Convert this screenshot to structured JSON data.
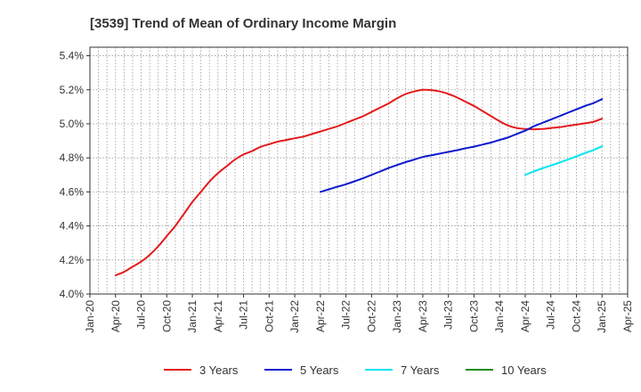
{
  "chart_data": {
    "type": "line",
    "title": "[3539]  Trend of Mean of Ordinary Income Margin",
    "xlabel": "",
    "ylabel": "",
    "x_tick_labels": [
      "Jan-20",
      "Apr-20",
      "Jul-20",
      "Oct-20",
      "Jan-21",
      "Apr-21",
      "Jul-21",
      "Oct-21",
      "Jan-22",
      "Apr-22",
      "Jul-22",
      "Oct-22",
      "Jan-23",
      "Apr-23",
      "Jul-23",
      "Oct-23",
      "Jan-24",
      "Apr-24",
      "Jul-24",
      "Oct-24",
      "Jan-25",
      "Apr-25"
    ],
    "y_tick_labels": [
      "4.0%",
      "4.2%",
      "4.4%",
      "4.6%",
      "4.8%",
      "5.0%",
      "5.2%",
      "5.4%"
    ],
    "ylim": [
      4.0,
      5.45
    ],
    "grid": true,
    "legend_position": "bottom",
    "series": [
      {
        "name": "3 Years",
        "color": "#e31a1c",
        "x": [
          "Apr-20",
          "May-20",
          "Jun-20",
          "Jul-20",
          "Aug-20",
          "Sep-20",
          "Oct-20",
          "Nov-20",
          "Dec-20",
          "Jan-21",
          "Feb-21",
          "Mar-21",
          "Apr-21",
          "May-21",
          "Jun-21",
          "Jul-21",
          "Aug-21",
          "Sep-21",
          "Oct-21",
          "Nov-21",
          "Dec-21",
          "Jan-22",
          "Feb-22",
          "Mar-22",
          "Apr-22",
          "May-22",
          "Jun-22",
          "Jul-22",
          "Aug-22",
          "Sep-22",
          "Oct-22",
          "Nov-22",
          "Dec-22",
          "Jan-23",
          "Feb-23",
          "Mar-23",
          "Apr-23",
          "May-23",
          "Jun-23",
          "Jul-23",
          "Aug-23",
          "Sep-23",
          "Oct-23",
          "Nov-23",
          "Dec-23",
          "Jan-24",
          "Feb-24",
          "Mar-24",
          "Apr-24",
          "May-24",
          "Jun-24",
          "Jul-24",
          "Aug-24",
          "Sep-24",
          "Oct-24",
          "Nov-24",
          "Dec-24",
          "Jan-25"
        ],
        "values": [
          4.11,
          4.13,
          4.16,
          4.19,
          4.23,
          4.28,
          4.34,
          4.4,
          4.47,
          4.54,
          4.6,
          4.66,
          4.71,
          4.75,
          4.79,
          4.82,
          4.84,
          4.865,
          4.88,
          4.895,
          4.905,
          4.915,
          4.925,
          4.94,
          4.955,
          4.97,
          4.985,
          5.005,
          5.025,
          5.045,
          5.07,
          5.095,
          5.12,
          5.15,
          5.175,
          5.19,
          5.2,
          5.198,
          5.19,
          5.175,
          5.155,
          5.13,
          5.105,
          5.075,
          5.045,
          5.015,
          4.99,
          4.975,
          4.97,
          4.968,
          4.97,
          4.975,
          4.98,
          4.988,
          4.995,
          5.003,
          5.012,
          5.03
        ]
      },
      {
        "name": "5 Years",
        "color": "#0a1acd",
        "x": [
          "Apr-22",
          "May-22",
          "Jun-22",
          "Jul-22",
          "Aug-22",
          "Sep-22",
          "Oct-22",
          "Nov-22",
          "Dec-22",
          "Jan-23",
          "Feb-23",
          "Mar-23",
          "Apr-23",
          "May-23",
          "Jun-23",
          "Jul-23",
          "Aug-23",
          "Sep-23",
          "Oct-23",
          "Nov-23",
          "Dec-23",
          "Jan-24",
          "Feb-24",
          "Mar-24",
          "Apr-24",
          "May-24",
          "Jun-24",
          "Jul-24",
          "Aug-24",
          "Sep-24",
          "Oct-24",
          "Nov-24",
          "Dec-24",
          "Jan-25"
        ],
        "values": [
          4.6,
          4.615,
          4.63,
          4.645,
          4.662,
          4.68,
          4.7,
          4.72,
          4.74,
          4.758,
          4.775,
          4.79,
          4.805,
          4.815,
          4.825,
          4.835,
          4.845,
          4.856,
          4.866,
          4.878,
          4.89,
          4.905,
          4.92,
          4.94,
          4.96,
          4.985,
          5.005,
          5.025,
          5.045,
          5.065,
          5.085,
          5.105,
          5.122,
          5.145
        ]
      },
      {
        "name": "7 Years",
        "color": "#00e5ee",
        "x": [
          "Apr-24",
          "May-24",
          "Jun-24",
          "Jul-24",
          "Aug-24",
          "Sep-24",
          "Oct-24",
          "Nov-24",
          "Dec-24",
          "Jan-25"
        ],
        "values": [
          4.7,
          4.72,
          4.738,
          4.755,
          4.772,
          4.79,
          4.808,
          4.828,
          4.846,
          4.868
        ]
      },
      {
        "name": "10 Years",
        "color": "#1e8c1e",
        "x": [],
        "values": []
      }
    ]
  }
}
